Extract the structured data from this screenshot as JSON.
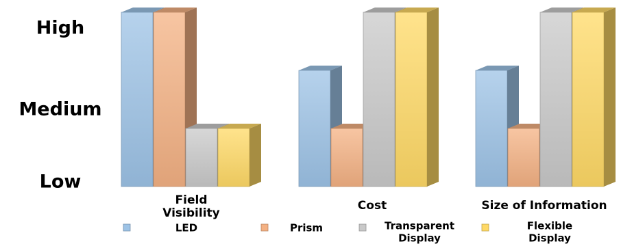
{
  "chart_data": {
    "type": "bar",
    "style": "3d-clustered-column",
    "y_tick_labels": [
      "High",
      "Medium",
      "Low"
    ],
    "ylim": [
      0,
      3
    ],
    "value_scale": {
      "Low": 0,
      "Medium": 1,
      "High": 2,
      "High_top": 3
    },
    "categories": [
      {
        "lines": [
          "Field",
          "Visibility"
        ]
      },
      {
        "lines": [
          "Cost"
        ]
      },
      {
        "lines": [
          "Size of Information"
        ]
      }
    ],
    "series": [
      {
        "name_lines": [
          "LED"
        ],
        "color": "#9dc3e6",
        "values": [
          3.0,
          2.0,
          2.0
        ]
      },
      {
        "name_lines": [
          "Prism"
        ],
        "color": "#f4b183",
        "values": [
          3.0,
          1.0,
          1.0
        ]
      },
      {
        "name_lines": [
          "Transparent",
          "Display"
        ],
        "color": "#c9c9c9",
        "values": [
          1.0,
          3.0,
          3.0
        ]
      },
      {
        "name_lines": [
          "Flexible",
          "Display"
        ],
        "color": "#ffd966",
        "values": [
          1.0,
          3.0,
          3.0
        ]
      }
    ],
    "grid": false,
    "legend_position": "bottom"
  }
}
